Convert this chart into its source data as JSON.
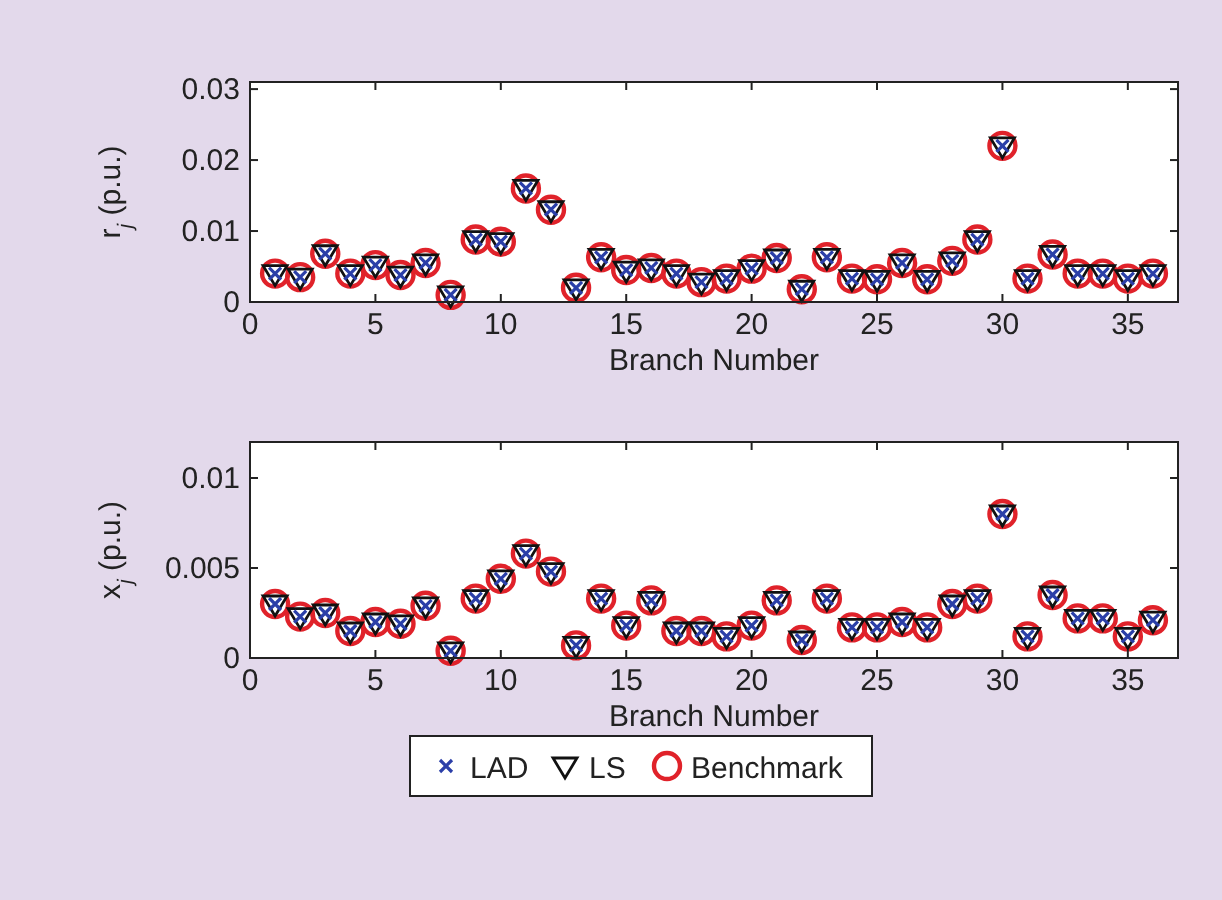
{
  "chart_data": [
    {
      "type": "scatter",
      "xlabel": "Branch Number",
      "ylabel": "r$_{j}$ (p.u.)",
      "xlim": [
        0,
        37
      ],
      "xticks": [
        0,
        5,
        10,
        15,
        20,
        25,
        30,
        35
      ],
      "ylim": [
        0,
        0.031
      ],
      "yticks": [
        0,
        0.01,
        0.02,
        0.03
      ],
      "grid": false,
      "x": [
        1,
        2,
        3,
        4,
        5,
        6,
        7,
        8,
        9,
        10,
        11,
        12,
        13,
        14,
        15,
        16,
        17,
        18,
        19,
        20,
        21,
        22,
        23,
        24,
        25,
        26,
        27,
        28,
        29,
        30,
        31,
        32,
        33,
        34,
        35,
        36
      ],
      "series": [
        {
          "color": "#2b3fa8",
          "marker": "cross",
          "values": [
            0.004,
            0.0035,
            0.0068,
            0.004,
            0.0052,
            0.0038,
            0.0055,
            0.001,
            0.0088,
            0.0085,
            0.016,
            0.013,
            0.002,
            0.0063,
            0.0045,
            0.0048,
            0.004,
            0.0028,
            0.0033,
            0.0047,
            0.0062,
            0.0018,
            0.0063,
            0.0033,
            0.0032,
            0.0055,
            0.0032,
            0.0058,
            0.0088,
            0.022,
            0.0033,
            0.0067,
            0.004,
            0.004,
            0.0033,
            0.004
          ]
        },
        {
          "color": "#111111",
          "marker": "triangle",
          "values": [
            0.004,
            0.0035,
            0.0068,
            0.004,
            0.0052,
            0.0038,
            0.0055,
            0.001,
            0.0088,
            0.0085,
            0.016,
            0.013,
            0.002,
            0.0063,
            0.0045,
            0.0048,
            0.004,
            0.0028,
            0.0033,
            0.0047,
            0.0062,
            0.0018,
            0.0063,
            0.0033,
            0.0032,
            0.0055,
            0.0032,
            0.0058,
            0.0088,
            0.022,
            0.0033,
            0.0067,
            0.004,
            0.004,
            0.0033,
            0.004
          ]
        },
        {
          "color": "#e0222a",
          "marker": "circle",
          "values": [
            0.004,
            0.0035,
            0.0068,
            0.004,
            0.0052,
            0.0038,
            0.0055,
            0.001,
            0.0088,
            0.0085,
            0.016,
            0.013,
            0.002,
            0.0063,
            0.0045,
            0.0048,
            0.004,
            0.0028,
            0.0033,
            0.0047,
            0.0062,
            0.0018,
            0.0063,
            0.0033,
            0.0032,
            0.0055,
            0.0032,
            0.0058,
            0.0088,
            0.022,
            0.0033,
            0.0067,
            0.004,
            0.004,
            0.0033,
            0.004
          ]
        }
      ]
    },
    {
      "type": "scatter",
      "xlabel": "Branch Number",
      "ylabel": "x$_{j}$ (p.u.)",
      "xlim": [
        0,
        37
      ],
      "xticks": [
        0,
        5,
        10,
        15,
        20,
        25,
        30,
        35
      ],
      "ylim": [
        0,
        0.012
      ],
      "yticks": [
        0,
        0.005,
        0.01
      ],
      "grid": false,
      "legend": "bottom",
      "x": [
        1,
        2,
        3,
        4,
        5,
        6,
        7,
        8,
        9,
        10,
        11,
        12,
        13,
        14,
        15,
        16,
        17,
        18,
        19,
        20,
        21,
        22,
        23,
        24,
        25,
        26,
        27,
        28,
        29,
        30,
        31,
        32,
        33,
        34,
        35,
        36
      ],
      "series": [
        {
          "name": "LAD",
          "color": "#2b3fa8",
          "marker": "cross",
          "values": [
            0.003,
            0.0023,
            0.0025,
            0.0015,
            0.002,
            0.0019,
            0.0029,
            0.0004,
            0.0033,
            0.0044,
            0.0058,
            0.0048,
            0.0007,
            0.0033,
            0.0018,
            0.0032,
            0.0015,
            0.0015,
            0.0012,
            0.0018,
            0.0032,
            0.001,
            0.0033,
            0.0017,
            0.0017,
            0.002,
            0.0017,
            0.003,
            0.0033,
            0.008,
            0.0012,
            0.0035,
            0.0022,
            0.0022,
            0.0012,
            0.0021
          ]
        },
        {
          "name": "LS",
          "color": "#111111",
          "marker": "triangle",
          "values": [
            0.003,
            0.0023,
            0.0025,
            0.0015,
            0.002,
            0.0019,
            0.0029,
            0.0004,
            0.0033,
            0.0044,
            0.0058,
            0.0048,
            0.0007,
            0.0033,
            0.0018,
            0.0032,
            0.0015,
            0.0015,
            0.0012,
            0.0018,
            0.0032,
            0.001,
            0.0033,
            0.0017,
            0.0017,
            0.002,
            0.0017,
            0.003,
            0.0033,
            0.008,
            0.0012,
            0.0035,
            0.0022,
            0.0022,
            0.0012,
            0.0021
          ]
        },
        {
          "name": "Benchmark",
          "color": "#e0222a",
          "marker": "circle",
          "values": [
            0.003,
            0.0023,
            0.0025,
            0.0015,
            0.002,
            0.0019,
            0.0029,
            0.0004,
            0.0033,
            0.0044,
            0.0058,
            0.0048,
            0.0007,
            0.0033,
            0.0018,
            0.0032,
            0.0015,
            0.0015,
            0.0012,
            0.0018,
            0.0032,
            0.001,
            0.0033,
            0.0017,
            0.0017,
            0.002,
            0.0017,
            0.003,
            0.0033,
            0.008,
            0.0012,
            0.0035,
            0.0022,
            0.0022,
            0.0012,
            0.0021
          ]
        }
      ]
    }
  ]
}
